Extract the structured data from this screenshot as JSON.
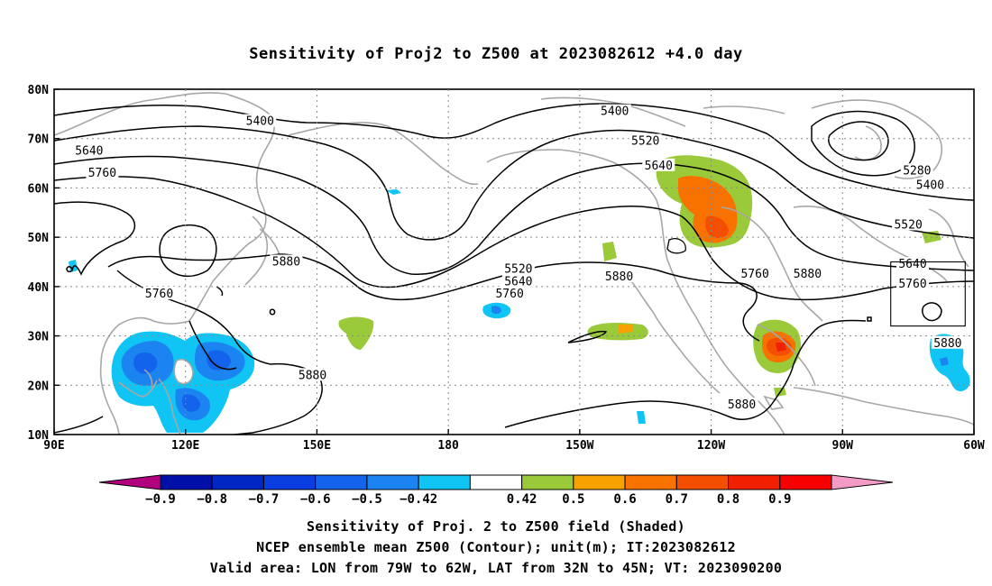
{
  "title": "Sensitivity of Proj2 to Z500 at 2023082612 +4.0 day",
  "map": {
    "lon_range": [
      90,
      300
    ],
    "lat_range": [
      10,
      80
    ],
    "lat_ticks": [
      {
        "value": 80,
        "label": "80N"
      },
      {
        "value": 70,
        "label": "70N"
      },
      {
        "value": 60,
        "label": "60N"
      },
      {
        "value": 50,
        "label": "50N"
      },
      {
        "value": 40,
        "label": "40N"
      },
      {
        "value": 30,
        "label": "30N"
      },
      {
        "value": 20,
        "label": "20N"
      },
      {
        "value": 10,
        "label": "10N"
      }
    ],
    "lon_ticks": [
      {
        "value": 90,
        "label": "90E"
      },
      {
        "value": 120,
        "label": "120E"
      },
      {
        "value": 150,
        "label": "150E"
      },
      {
        "value": 180,
        "label": "180"
      },
      {
        "value": 210,
        "label": "150W"
      },
      {
        "value": 240,
        "label": "120W"
      },
      {
        "value": 270,
        "label": "90W"
      },
      {
        "value": 300,
        "label": "60W"
      }
    ],
    "grid": "dotted",
    "contour_labels": [
      {
        "text": "5400",
        "lon": 137,
        "lat": 73.5
      },
      {
        "text": "5400",
        "lon": 218,
        "lat": 75.5
      },
      {
        "text": "5280",
        "lon": 287,
        "lat": 63.5
      },
      {
        "text": "5400",
        "lon": 290,
        "lat": 60.5
      },
      {
        "text": "5520",
        "lon": 225,
        "lat": 69.5
      },
      {
        "text": "5520",
        "lon": 285,
        "lat": 52.5
      },
      {
        "text": "5520",
        "lon": 196,
        "lat": 43.5
      },
      {
        "text": "5640",
        "lon": 98,
        "lat": 67.5
      },
      {
        "text": "5640",
        "lon": 228,
        "lat": 64.5
      },
      {
        "text": "5640",
        "lon": 196,
        "lat": 41
      },
      {
        "text": "5640",
        "lon": 286,
        "lat": 44.5
      },
      {
        "text": "5760",
        "lon": 101,
        "lat": 63
      },
      {
        "text": "5760",
        "lon": 194,
        "lat": 38.5
      },
      {
        "text": "5760",
        "lon": 250,
        "lat": 42.5
      },
      {
        "text": "5760",
        "lon": 286,
        "lat": 40.5
      },
      {
        "text": "5760",
        "lon": 114,
        "lat": 38.5
      },
      {
        "text": "5880",
        "lon": 143,
        "lat": 45
      },
      {
        "text": "5880",
        "lon": 219,
        "lat": 42
      },
      {
        "text": "5880",
        "lon": 262,
        "lat": 42.5
      },
      {
        "text": "5880",
        "lon": 149,
        "lat": 22
      },
      {
        "text": "5880",
        "lon": 247,
        "lat": 16
      },
      {
        "text": "5880",
        "lon": 294,
        "lat": 28.5
      }
    ],
    "valid_box": {
      "lon": [
        281,
        298
      ],
      "lat": [
        32,
        45
      ]
    }
  },
  "colorbar": {
    "colors": [
      "#b0007e",
      "#000fa8",
      "#0026c4",
      "#0a3ee0",
      "#1463ec",
      "#1b84f0",
      "#10c4f4",
      "#ffffff",
      "#9ac93a",
      "#f7a200",
      "#f87200",
      "#f44e00",
      "#f02000",
      "#f90000",
      "#f49ac6"
    ],
    "labels": [
      "−0.9",
      "−0.8",
      "−0.7",
      "−0.6",
      "−0.5",
      "−0.42",
      "0.42",
      "0.5",
      "0.6",
      "0.7",
      "0.8",
      "0.9"
    ]
  },
  "captions": [
    "Sensitivity of Proj. 2 to Z500 field (Shaded)",
    "NCEP ensemble mean Z500 (Contour); unit(m); IT:2023082612",
    "Valid area: LON from 79W to 62W, LAT from 32N to 45N; VT: 2023090200"
  ]
}
